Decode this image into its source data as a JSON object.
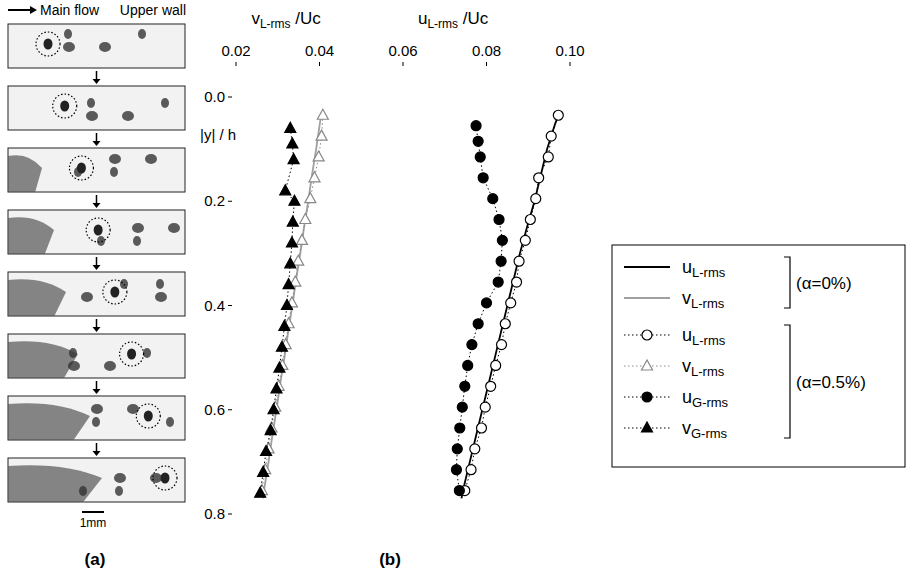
{
  "panel_a": {
    "header_left": "Main flow",
    "header_right": "Upper wall",
    "scale_bar": "1mm",
    "label": "(a)",
    "frames": 8
  },
  "chart_data": {
    "type": "line",
    "title": "(b)",
    "xlabel": [
      "vL-rms /Uc",
      "uL-rms /Uc"
    ],
    "ylabel": "|y| / h",
    "xlim": [
      0.02,
      0.1
    ],
    "xticks": [
      0.02,
      0.04,
      0.06,
      0.08,
      {
        "value": 0.1,
        "label": "0.10"
      }
    ],
    "ylim": [
      0.8,
      0
    ],
    "yticks": [
      {
        "value": 0,
        "label": "0.0"
      },
      0.2,
      0.4,
      0.6,
      0.8
    ],
    "grid": false,
    "legend": "right",
    "annotations": [
      "(α=0%)",
      "(α=0.5%)"
    ],
    "series": [
      {
        "name": "uL-rms",
        "color": "#000000",
        "marker": "none",
        "line_style": "solid",
        "x": [
          0.0975,
          0.0965,
          0.0945,
          0.093,
          0.0915,
          0.0897,
          0.088,
          0.0865,
          0.085,
          0.0835,
          0.082,
          0.0805,
          0.079,
          0.0775,
          0.076,
          0.0745,
          0.074
        ],
        "values": [
          0.03,
          0.05,
          0.1,
          0.15,
          0.2,
          0.25,
          0.3,
          0.35,
          0.4,
          0.45,
          0.5,
          0.55,
          0.6,
          0.65,
          0.7,
          0.75,
          0.77
        ]
      },
      {
        "name": "vL-rms",
        "color": "#a0a0a0",
        "marker": "none",
        "line_style": "solid",
        "x": [
          0.0405,
          0.0401,
          0.0392,
          0.0382,
          0.0373,
          0.0363,
          0.0354,
          0.0344,
          0.0335,
          0.0325,
          0.0316,
          0.0306,
          0.0297,
          0.0287,
          0.0278,
          0.0268,
          0.0265
        ],
        "values": [
          0.03,
          0.05,
          0.1,
          0.15,
          0.2,
          0.25,
          0.3,
          0.35,
          0.4,
          0.45,
          0.5,
          0.55,
          0.6,
          0.65,
          0.7,
          0.75,
          0.77
        ]
      },
      {
        "name": "uL-rms",
        "color": "#000000",
        "marker": "circle-open",
        "line_style": "dotted",
        "x": [
          0.0972,
          0.0955,
          0.0948,
          0.0925,
          0.0918,
          0.0905,
          0.0893,
          0.0878,
          0.0872,
          0.0858,
          0.0845,
          0.0836,
          0.0822,
          0.081,
          0.0797,
          0.0788,
          0.0772,
          0.0763,
          0.0748
        ],
        "values": [
          0.035,
          0.075,
          0.115,
          0.155,
          0.195,
          0.235,
          0.275,
          0.315,
          0.355,
          0.395,
          0.435,
          0.475,
          0.515,
          0.555,
          0.595,
          0.635,
          0.675,
          0.715,
          0.755
        ]
      },
      {
        "name": "vL-rms",
        "color": "#888888",
        "marker": "triangle-open",
        "line_style": "dotted",
        "x": [
          0.0408,
          0.0405,
          0.0398,
          0.0388,
          0.0378,
          0.0366,
          0.0358,
          0.0349,
          0.0342,
          0.0334,
          0.0326,
          0.0319,
          0.0311,
          0.0302,
          0.0294,
          0.0285,
          0.0278,
          0.027,
          0.0262
        ],
        "values": [
          0.035,
          0.075,
          0.115,
          0.155,
          0.195,
          0.235,
          0.275,
          0.315,
          0.355,
          0.395,
          0.435,
          0.475,
          0.515,
          0.555,
          0.595,
          0.635,
          0.675,
          0.715,
          0.755
        ]
      },
      {
        "name": "uG-rms",
        "color": "#000000",
        "marker": "circle",
        "line_style": "dotted",
        "x": [
          0.0775,
          0.078,
          0.0785,
          0.0792,
          0.0815,
          0.083,
          0.0838,
          0.0835,
          0.0828,
          0.08,
          0.078,
          0.0765,
          0.0755,
          0.0748,
          0.0742,
          0.0736,
          0.073,
          0.0728,
          0.0735
        ],
        "values": [
          0.055,
          0.085,
          0.115,
          0.155,
          0.195,
          0.235,
          0.275,
          0.315,
          0.355,
          0.395,
          0.435,
          0.475,
          0.515,
          0.555,
          0.595,
          0.635,
          0.675,
          0.715,
          0.755
        ]
      },
      {
        "name": "vG-rms",
        "color": "#000000",
        "marker": "triangle",
        "line_style": "dotted",
        "x": [
          0.033,
          0.0335,
          0.0338,
          0.0318,
          0.034,
          0.0336,
          0.0334,
          0.033,
          0.0326,
          0.0322,
          0.0316,
          0.031,
          0.0304,
          0.0297,
          0.029,
          0.0283,
          0.0272,
          0.0265,
          0.0258
        ],
        "values": [
          0.06,
          0.09,
          0.12,
          0.18,
          0.2,
          0.24,
          0.28,
          0.32,
          0.36,
          0.4,
          0.44,
          0.48,
          0.52,
          0.56,
          0.6,
          0.64,
          0.68,
          0.72,
          0.76
        ]
      }
    ]
  }
}
